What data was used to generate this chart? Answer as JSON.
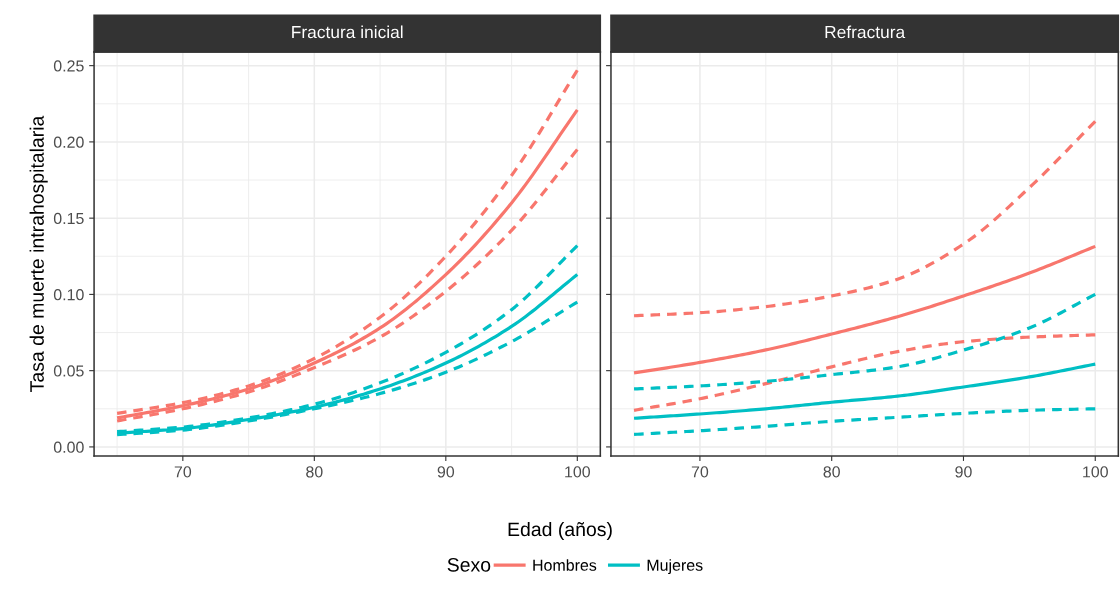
{
  "chart_data": [
    {
      "type": "line",
      "title": "Fractura inicial",
      "xlabel": "Edad (años)",
      "ylabel": "Tasa de muerte intrahospitalaria",
      "legend_title": "Sexo",
      "legend": "bottom",
      "grid": true,
      "x": [
        65,
        70,
        75,
        80,
        85,
        90,
        95,
        100
      ],
      "xlim": [
        63.25,
        101.75
      ],
      "xticks": [
        70,
        80,
        90,
        100
      ],
      "ylim": [
        -0.006,
        0.259
      ],
      "yticks": [
        {
          "value": 0,
          "label": "0.00"
        },
        {
          "value": 0.05,
          "label": "0.05"
        },
        {
          "value": 0.1,
          "label": "0.10"
        },
        {
          "value": 0.15,
          "label": "0.15"
        },
        {
          "value": 0.2,
          "label": "0.20"
        },
        {
          "value": 0.25,
          "label": "0.25"
        }
      ],
      "series": [
        {
          "name": "Hombres",
          "color": "#f8766d",
          "line_style": "solid",
          "values": [
            0.019,
            0.027,
            0.038,
            0.055,
            0.078,
            0.113,
            0.16,
            0.221
          ]
        },
        {
          "color": "#f8766d",
          "line_style": "dashed",
          "values": [
            0.022,
            0.029,
            0.04,
            0.058,
            0.085,
            0.125,
            0.178,
            0.247
          ]
        },
        {
          "color": "#f8766d",
          "line_style": "dashed",
          "values": [
            0.017,
            0.025,
            0.036,
            0.052,
            0.072,
            0.102,
            0.142,
            0.195
          ]
        },
        {
          "name": "Mujeres",
          "color": "#00bfc4",
          "line_style": "solid",
          "values": [
            0.009,
            0.012,
            0.018,
            0.026,
            0.038,
            0.055,
            0.079,
            0.113
          ]
        },
        {
          "color": "#00bfc4",
          "line_style": "dashed",
          "values": [
            0.01,
            0.013,
            0.019,
            0.028,
            0.042,
            0.062,
            0.09,
            0.132
          ]
        },
        {
          "color": "#00bfc4",
          "line_style": "dashed",
          "values": [
            0.008,
            0.011,
            0.017,
            0.025,
            0.035,
            0.049,
            0.069,
            0.095
          ]
        }
      ]
    },
    {
      "type": "line",
      "title": "Refractura",
      "grid": true,
      "tick_labels": "x",
      "x": [
        65,
        70,
        75,
        80,
        85,
        90,
        95,
        100
      ],
      "xlim": [
        63.25,
        101.75
      ],
      "xticks": [
        70,
        80,
        90,
        100
      ],
      "ylim": [
        -0.006,
        0.259
      ],
      "yticks": [
        {
          "value": 0,
          "label": null
        },
        {
          "value": 0.05,
          "label": null
        },
        {
          "value": 0.1,
          "label": null
        },
        {
          "value": 0.15,
          "label": null
        },
        {
          "value": 0.2,
          "label": null
        },
        {
          "value": 0.25,
          "label": null
        }
      ],
      "series": [
        {
          "color": "#f8766d",
          "line_style": "solid",
          "values": [
            0.0485,
            0.0554,
            0.0636,
            0.074,
            0.0854,
            0.099,
            0.114,
            0.1315
          ]
        },
        {
          "color": "#f8766d",
          "line_style": "dashed",
          "values": [
            0.086,
            0.088,
            0.092,
            0.099,
            0.11,
            0.133,
            0.17,
            0.2135
          ]
        },
        {
          "color": "#f8766d",
          "line_style": "dashed",
          "values": [
            0.024,
            0.0316,
            0.0415,
            0.0525,
            0.0625,
            0.069,
            0.072,
            0.0735
          ]
        },
        {
          "color": "#00bfc4",
          "line_style": "solid",
          "values": [
            0.0188,
            0.0216,
            0.025,
            0.0293,
            0.0333,
            0.0393,
            0.0459,
            0.0543
          ]
        },
        {
          "color": "#00bfc4",
          "line_style": "dashed",
          "values": [
            0.038,
            0.04,
            0.043,
            0.0474,
            0.0525,
            0.0635,
            0.078,
            0.1
          ]
        },
        {
          "color": "#00bfc4",
          "line_style": "dashed",
          "values": [
            0.0082,
            0.0106,
            0.0135,
            0.0168,
            0.0194,
            0.022,
            0.024,
            0.025
          ]
        }
      ]
    }
  ]
}
